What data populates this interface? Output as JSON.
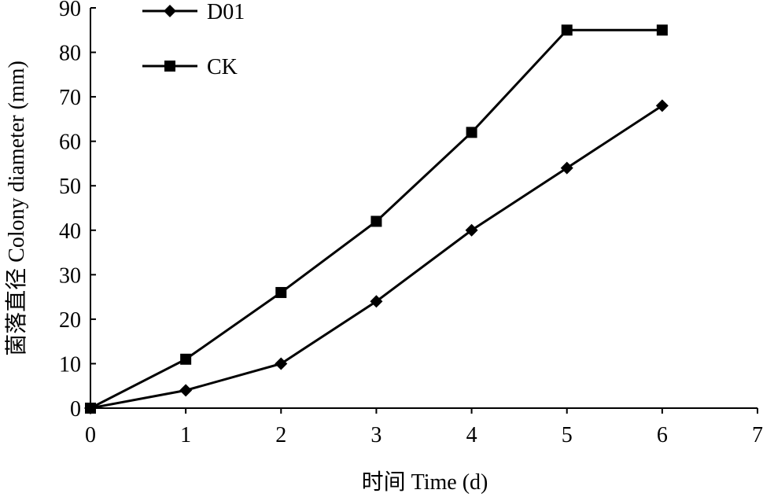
{
  "chart_data": {
    "type": "line",
    "title": "",
    "xlabel": "时间 Time (d)",
    "ylabel": "菌落直径 Colony diameter (mm)",
    "x": [
      0,
      1,
      2,
      3,
      4,
      5,
      6
    ],
    "xlim": [
      0,
      7
    ],
    "ylim": [
      0,
      90
    ],
    "x_ticks": [
      "0",
      "1",
      "2",
      "3",
      "4",
      "5",
      "6",
      "7"
    ],
    "y_ticks": [
      "0",
      "10",
      "20",
      "30",
      "40",
      "50",
      "60",
      "70",
      "80",
      "90"
    ],
    "grid": false,
    "legend_position": "top-left",
    "series": [
      {
        "name": "D01",
        "marker": "diamond",
        "color": "#000000",
        "values": [
          0,
          4,
          10,
          24,
          40,
          54,
          68
        ]
      },
      {
        "name": "CK",
        "marker": "square",
        "color": "#000000",
        "values": [
          0,
          11,
          26,
          42,
          62,
          85,
          85
        ]
      }
    ]
  }
}
